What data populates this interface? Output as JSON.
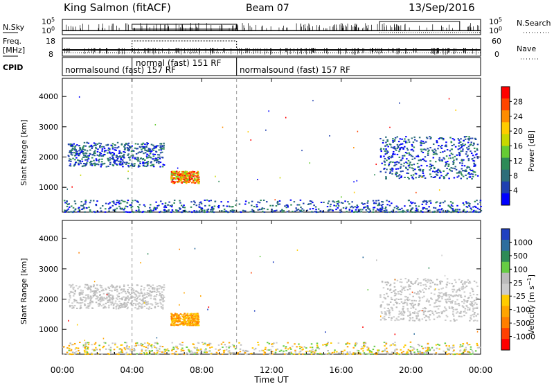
{
  "header": {
    "station": "King Salmon (fitACF)",
    "beam": "Beam 07",
    "date": "13/Sep/2016"
  },
  "summary_panels": {
    "nsky": {
      "label": "N.Sky",
      "left_ticks": [
        "10^5",
        "10^0"
      ],
      "right_label": "N.Search",
      "right_ticks": [
        "10^5",
        "10^0"
      ]
    },
    "freq": {
      "label_line1": "Freq.",
      "label_line2": "[MHz]",
      "left_ticks": [
        "18",
        "8"
      ],
      "right_label": "Nave",
      "right_ticks": [
        "60",
        "0"
      ]
    },
    "cpid": {
      "label": "CPID",
      "segments": [
        {
          "text": "normalsound (fast) 157 RF",
          "start_hour": 0,
          "end_hour": 4
        },
        {
          "text": "normal (fast) 151 RF",
          "start_hour": 4,
          "end_hour": 10
        },
        {
          "text": "normalsound (fast) 157 RF",
          "start_hour": 10,
          "end_hour": 24
        }
      ]
    }
  },
  "chart_data": [
    {
      "type": "heatmap",
      "name": "power",
      "ylabel": "Slant Range [km]",
      "xlim": [
        0,
        24
      ],
      "ylim": [
        180,
        4600
      ],
      "yticks": [
        1000,
        2000,
        3000,
        4000
      ],
      "colorbar": {
        "label": "Power [dB]",
        "ticks": [
          "28",
          "24",
          "20",
          "16",
          "12",
          "8",
          "4"
        ],
        "colors": [
          "#0000ff",
          "#1f3fb0",
          "#2d6e7a",
          "#2e8b57",
          "#66cc33",
          "#c8d800",
          "#ffcc00",
          "#ff8c00",
          "#ff4500",
          "#ff0000"
        ]
      },
      "features": [
        {
          "desc": "echo band",
          "hours": [
            0.3,
            5.8
          ],
          "range_km": [
            1700,
            2500
          ]
        },
        {
          "desc": "strong patch",
          "hours": [
            6.2,
            7.8
          ],
          "range_km": [
            1150,
            1550
          ]
        },
        {
          "desc": "echo band",
          "hours": [
            18.2,
            23.8
          ],
          "range_km": [
            1300,
            2700
          ]
        },
        {
          "desc": "near-range scatter",
          "hours": [
            0,
            24
          ],
          "range_km": [
            200,
            600
          ]
        }
      ]
    },
    {
      "type": "heatmap",
      "name": "velocity",
      "ylabel": "Slant Range [km]",
      "xlabel": "Time UT",
      "xlim": [
        0,
        24
      ],
      "xticks": [
        "00:00",
        "04:00",
        "08:00",
        "12:00",
        "16:00",
        "20:00",
        "00:00"
      ],
      "ylim": [
        180,
        4600
      ],
      "yticks": [
        1000,
        2000,
        3000,
        4000
      ],
      "colorbar": {
        "label": "Velocity [m s^-1]",
        "ticks": [
          "1000",
          "500",
          "100",
          "25",
          "-25",
          "-100",
          "-500",
          "-1000"
        ],
        "colors": [
          "#2040c0",
          "#2e6e9e",
          "#2e8b57",
          "#66cc44",
          "#bbbbbb",
          "#cccccc",
          "#ffcc00",
          "#ffa500",
          "#ff7f00",
          "#ff4000",
          "#ff0000"
        ]
      },
      "features": [
        {
          "desc": "grey band",
          "hours": [
            0.3,
            5.8
          ],
          "range_km": [
            1700,
            2500
          ]
        },
        {
          "desc": "orange patch",
          "hours": [
            6.2,
            7.8
          ],
          "range_km": [
            1150,
            1550
          ]
        },
        {
          "desc": "grey band",
          "hours": [
            18.2,
            23.8
          ],
          "range_km": [
            1300,
            2700
          ]
        },
        {
          "desc": "near-range scatter",
          "hours": [
            0,
            24
          ],
          "range_km": [
            200,
            600
          ]
        }
      ]
    }
  ]
}
